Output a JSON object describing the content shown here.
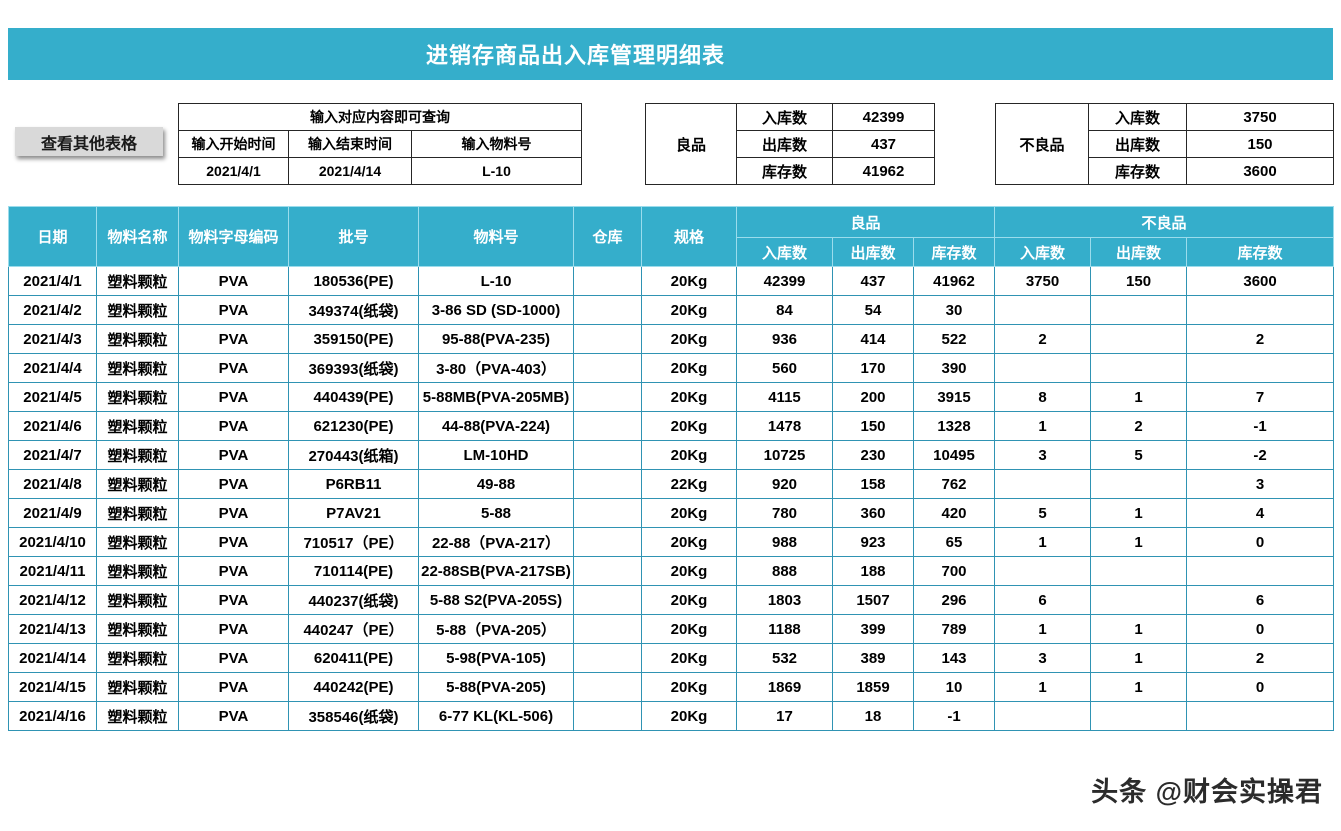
{
  "title": "进销存商品出入库管理明细表",
  "view_other_button": "查看其他表格",
  "query": {
    "hint": "输入对应内容即可查询",
    "start_label": "输入开始时间",
    "end_label": "输入结束时间",
    "material_label": "输入物料号",
    "start_value": "2021/4/1",
    "end_value": "2021/4/14",
    "material_value": "L-10"
  },
  "summary": {
    "good": {
      "label": "良品",
      "rows": [
        {
          "label": "入库数",
          "value": "42399"
        },
        {
          "label": "出库数",
          "value": "437"
        },
        {
          "label": "库存数",
          "value": "41962"
        }
      ]
    },
    "bad": {
      "label": "不良品",
      "rows": [
        {
          "label": "入库数",
          "value": "3750"
        },
        {
          "label": "出库数",
          "value": "150"
        },
        {
          "label": "库存数",
          "value": "3600"
        }
      ]
    }
  },
  "table": {
    "headers": {
      "date": "日期",
      "material_name": "物料名称",
      "material_code": "物料字母编码",
      "batch_no": "批号",
      "material_no": "物料号",
      "warehouse": "仓库",
      "spec": "规格",
      "good_group": "良品",
      "bad_group": "不良品",
      "in_qty": "入库数",
      "out_qty": "出库数",
      "stock_qty": "库存数"
    },
    "col_keys": [
      "date",
      "material_name",
      "material_code",
      "batch_no",
      "material_no",
      "warehouse",
      "spec",
      "good-in",
      "good-out",
      "good-stock",
      "bad-in",
      "bad-out",
      "bad-stock"
    ],
    "rows": [
      [
        "2021/4/1",
        "塑料颗粒",
        "PVA",
        "180536(PE)",
        "L-10",
        "",
        "20Kg",
        "42399",
        "437",
        "41962",
        "3750",
        "150",
        "3600"
      ],
      [
        "2021/4/2",
        "塑料颗粒",
        "PVA",
        "349374(纸袋)",
        "3-86 SD (SD-1000)",
        "",
        "20Kg",
        "84",
        "54",
        "30",
        "",
        "",
        ""
      ],
      [
        "2021/4/3",
        "塑料颗粒",
        "PVA",
        "359150(PE)",
        "95-88(PVA-235)",
        "",
        "20Kg",
        "936",
        "414",
        "522",
        "2",
        "",
        "2"
      ],
      [
        "2021/4/4",
        "塑料颗粒",
        "PVA",
        "369393(纸袋)",
        "3-80（PVA-403）",
        "",
        "20Kg",
        "560",
        "170",
        "390",
        "",
        "",
        ""
      ],
      [
        "2021/4/5",
        "塑料颗粒",
        "PVA",
        "440439(PE)",
        "5-88MB(PVA-205MB)",
        "",
        "20Kg",
        "4115",
        "200",
        "3915",
        "8",
        "1",
        "7"
      ],
      [
        "2021/4/6",
        "塑料颗粒",
        "PVA",
        "621230(PE)",
        "44-88(PVA-224)",
        "",
        "20Kg",
        "1478",
        "150",
        "1328",
        "1",
        "2",
        "-1"
      ],
      [
        "2021/4/7",
        "塑料颗粒",
        "PVA",
        "270443(纸箱)",
        "LM-10HD",
        "",
        "20Kg",
        "10725",
        "230",
        "10495",
        "3",
        "5",
        "-2"
      ],
      [
        "2021/4/8",
        "塑料颗粒",
        "PVA",
        "P6RB11",
        "49-88",
        "",
        "22Kg",
        "920",
        "158",
        "762",
        "",
        "",
        "3"
      ],
      [
        "2021/4/9",
        "塑料颗粒",
        "PVA",
        "P7AV21",
        "5-88",
        "",
        "20Kg",
        "780",
        "360",
        "420",
        "5",
        "1",
        "4"
      ],
      [
        "2021/4/10",
        "塑料颗粒",
        "PVA",
        "710517（PE）",
        "22-88（PVA-217）",
        "",
        "20Kg",
        "988",
        "923",
        "65",
        "1",
        "1",
        "0"
      ],
      [
        "2021/4/11",
        "塑料颗粒",
        "PVA",
        "710114(PE)",
        "22-88SB(PVA-217SB)",
        "",
        "20Kg",
        "888",
        "188",
        "700",
        "",
        "",
        ""
      ],
      [
        "2021/4/12",
        "塑料颗粒",
        "PVA",
        "440237(纸袋)",
        "5-88 S2(PVA-205S)",
        "",
        "20Kg",
        "1803",
        "1507",
        "296",
        "6",
        "",
        "6"
      ],
      [
        "2021/4/13",
        "塑料颗粒",
        "PVA",
        "440247（PE）",
        "5-88（PVA-205）",
        "",
        "20Kg",
        "1188",
        "399",
        "789",
        "1",
        "1",
        "0"
      ],
      [
        "2021/4/14",
        "塑料颗粒",
        "PVA",
        "620411(PE)",
        "5-98(PVA-105)",
        "",
        "20Kg",
        "532",
        "389",
        "143",
        "3",
        "1",
        "2"
      ],
      [
        "2021/4/15",
        "塑料颗粒",
        "PVA",
        "440242(PE)",
        "5-88(PVA-205)",
        "",
        "20Kg",
        "1869",
        "1859",
        "10",
        "1",
        "1",
        "0"
      ],
      [
        "2021/4/16",
        "塑料颗粒",
        "PVA",
        "358546(纸袋)",
        "6-77 KL(KL-506)",
        "",
        "20Kg",
        "17",
        "18",
        "-1",
        "",
        "",
        ""
      ]
    ]
  },
  "watermark": "头条 @财会实操君",
  "colors": {
    "accent": "#35aecb",
    "button_gray": "#d9d9d9",
    "grid_teal": "#2f93b3",
    "grid_black": "#262626"
  }
}
